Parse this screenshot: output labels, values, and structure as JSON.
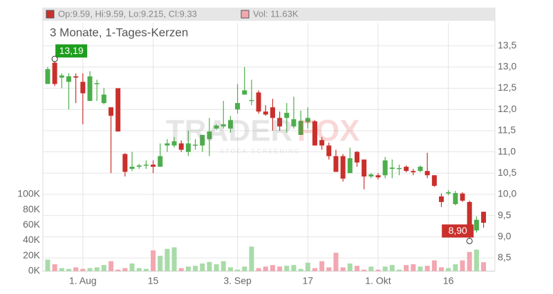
{
  "chart_data": {
    "type": "candlestick",
    "header": {
      "ohlc": "Op:9.59, Hi:9.59, Lo:9.215, Cl:9.33",
      "volume": "Vol: 11.63K"
    },
    "subtitle": "3 Monate, 1-Tages-Kerzen",
    "watermark": {
      "brand_a": "TRADER",
      "brand_b": "FOX",
      "tagline": "STOCK SCREENING"
    },
    "categories": [
      null,
      null,
      null,
      null,
      null,
      "1. Aug",
      null,
      null,
      null,
      null,
      null,
      null,
      null,
      null,
      null,
      "15",
      null,
      null,
      null,
      null,
      null,
      null,
      null,
      null,
      null,
      null,
      null,
      "3. Sep",
      null,
      null,
      null,
      null,
      null,
      null,
      null,
      null,
      null,
      "17",
      null,
      null,
      null,
      null,
      null,
      null,
      null,
      null,
      null,
      "1. Okt",
      null,
      null,
      null,
      null,
      null,
      null,
      null,
      null,
      null,
      "16",
      null,
      null,
      null,
      null,
      null
    ],
    "open": [
      12.6,
      13.1,
      12.75,
      12.65,
      12.78,
      12.65,
      12.2,
      12.6,
      12.15,
      12.05,
      12.5,
      10.95,
      10.6,
      10.65,
      10.68,
      10.7,
      10.65,
      11.15,
      11.15,
      11.2,
      11.0,
      11.15,
      11.15,
      11.3,
      11.55,
      11.6,
      11.55,
      12.0,
      12.35,
      12.2,
      12.4,
      11.95,
      12.05,
      11.8,
      11.8,
      11.6,
      11.4,
      11.7,
      11.72,
      11.28,
      11.15,
      10.9,
      10.9,
      10.5,
      11.0,
      10.82,
      10.42,
      10.45,
      10.45,
      10.6,
      10.6,
      10.65,
      10.55,
      10.55,
      10.55,
      10.45,
      9.95,
      10.02,
      9.77,
      10.02,
      9.82,
      9.15,
      9.59
    ],
    "high": [
      13.0,
      13.19,
      12.85,
      12.85,
      12.85,
      12.85,
      12.9,
      12.7,
      12.5,
      12.05,
      12.5,
      10.97,
      11.0,
      10.72,
      10.8,
      10.8,
      11.2,
      11.3,
      11.35,
      11.27,
      11.5,
      11.3,
      11.4,
      11.8,
      11.65,
      12.2,
      11.85,
      12.6,
      13.0,
      12.7,
      12.45,
      12.1,
      12.25,
      11.95,
      12.15,
      12.3,
      11.97,
      12.05,
      11.75,
      11.35,
      11.22,
      11.05,
      10.95,
      11.1,
      11.02,
      10.82,
      10.5,
      10.5,
      10.88,
      10.82,
      10.7,
      10.68,
      10.6,
      10.68,
      10.98,
      10.45,
      10.02,
      10.1,
      10.08,
      10.05,
      9.85,
      9.48,
      9.59
    ],
    "low": [
      12.6,
      12.55,
      12.5,
      12.0,
      12.15,
      11.65,
      12.2,
      12.2,
      12.12,
      10.5,
      11.48,
      10.42,
      10.55,
      10.6,
      10.6,
      10.5,
      10.65,
      11.0,
      11.1,
      11.0,
      10.9,
      11.05,
      11.0,
      10.9,
      11.52,
      11.55,
      11.45,
      11.9,
      12.35,
      12.1,
      11.9,
      11.85,
      11.5,
      11.5,
      11.45,
      11.55,
      11.4,
      11.55,
      11.15,
      11.05,
      10.82,
      10.53,
      10.3,
      10.5,
      10.65,
      10.12,
      10.38,
      10.35,
      10.38,
      10.38,
      10.45,
      10.52,
      10.45,
      10.52,
      10.38,
      10.18,
      9.7,
      9.98,
      9.74,
      9.82,
      8.9,
      9.1,
      9.215
    ],
    "close": [
      12.95,
      12.6,
      12.8,
      12.78,
      12.75,
      12.38,
      12.78,
      12.62,
      12.35,
      11.85,
      11.48,
      10.53,
      10.65,
      10.68,
      10.7,
      10.65,
      10.9,
      11.2,
      11.25,
      11.05,
      11.2,
      11.17,
      11.4,
      11.48,
      11.62,
      11.65,
      11.75,
      12.15,
      12.45,
      12.22,
      11.95,
      11.88,
      11.8,
      11.6,
      11.92,
      11.77,
      11.73,
      11.8,
      11.15,
      11.15,
      10.9,
      10.53,
      10.37,
      10.85,
      10.75,
      10.42,
      10.47,
      10.4,
      10.8,
      10.63,
      10.62,
      10.55,
      10.52,
      10.65,
      10.45,
      10.2,
      9.82,
      10.05,
      10.03,
      9.85,
      9.02,
      9.4,
      9.33
    ],
    "volume": [
      15000,
      9000,
      4000,
      3000,
      5000,
      3000,
      4000,
      5000,
      8000,
      13000,
      2000,
      4000,
      10000,
      4000,
      3000,
      27000,
      20000,
      29000,
      31000,
      4000,
      6000,
      7000,
      10000,
      12000,
      9000,
      13000,
      5000,
      2000,
      6000,
      32000,
      4000,
      6000,
      8000,
      6000,
      7000,
      8000,
      3000,
      11000,
      4000,
      13000,
      5000,
      24000,
      5000,
      10000,
      7000,
      2000,
      6000,
      2000,
      6000,
      8000,
      2000,
      8000,
      9000,
      6000,
      7000,
      14000,
      5000,
      4000,
      9000,
      14000,
      25000,
      28000,
      11630
    ],
    "up_color": "#4cae4c",
    "down_color": "#c9302c",
    "vol_up_color": "#a8dba8",
    "vol_down_color": "#f2a7b1",
    "ylim": [
      8.19,
      14.04
    ],
    "yticks": [
      {
        "value": 8.5,
        "label": "8,5"
      },
      {
        "value": 9,
        "label": "9,0"
      },
      {
        "value": 9.5,
        "label": "9,5"
      },
      {
        "value": 10,
        "label": "10,0"
      },
      {
        "value": 10.5,
        "label": "10,5"
      },
      {
        "value": 11,
        "label": "11,0"
      },
      {
        "value": 11.5,
        "label": "11,5"
      },
      {
        "value": 12,
        "label": "12,0"
      },
      {
        "value": 12.5,
        "label": "12,5"
      },
      {
        "value": 13,
        "label": "13,0"
      },
      {
        "value": 13.5,
        "label": "13,5"
      }
    ],
    "vol_ylim": [
      0,
      323000
    ],
    "vol_ticks": [
      {
        "value": 0,
        "label": "0K"
      },
      {
        "value": 20000,
        "label": "20K"
      },
      {
        "value": 40000,
        "label": "40K"
      },
      {
        "value": 60000,
        "label": "60K"
      },
      {
        "value": 80000,
        "label": "80K"
      },
      {
        "value": 100000,
        "label": "100K"
      }
    ],
    "annotations": [
      {
        "index": 1,
        "value": 13.19,
        "label": "13,19",
        "color": "#1e9e1e"
      },
      {
        "index": 60,
        "value": 8.9,
        "label": "8,90",
        "color": "#c9302c"
      }
    ],
    "grid": true
  }
}
